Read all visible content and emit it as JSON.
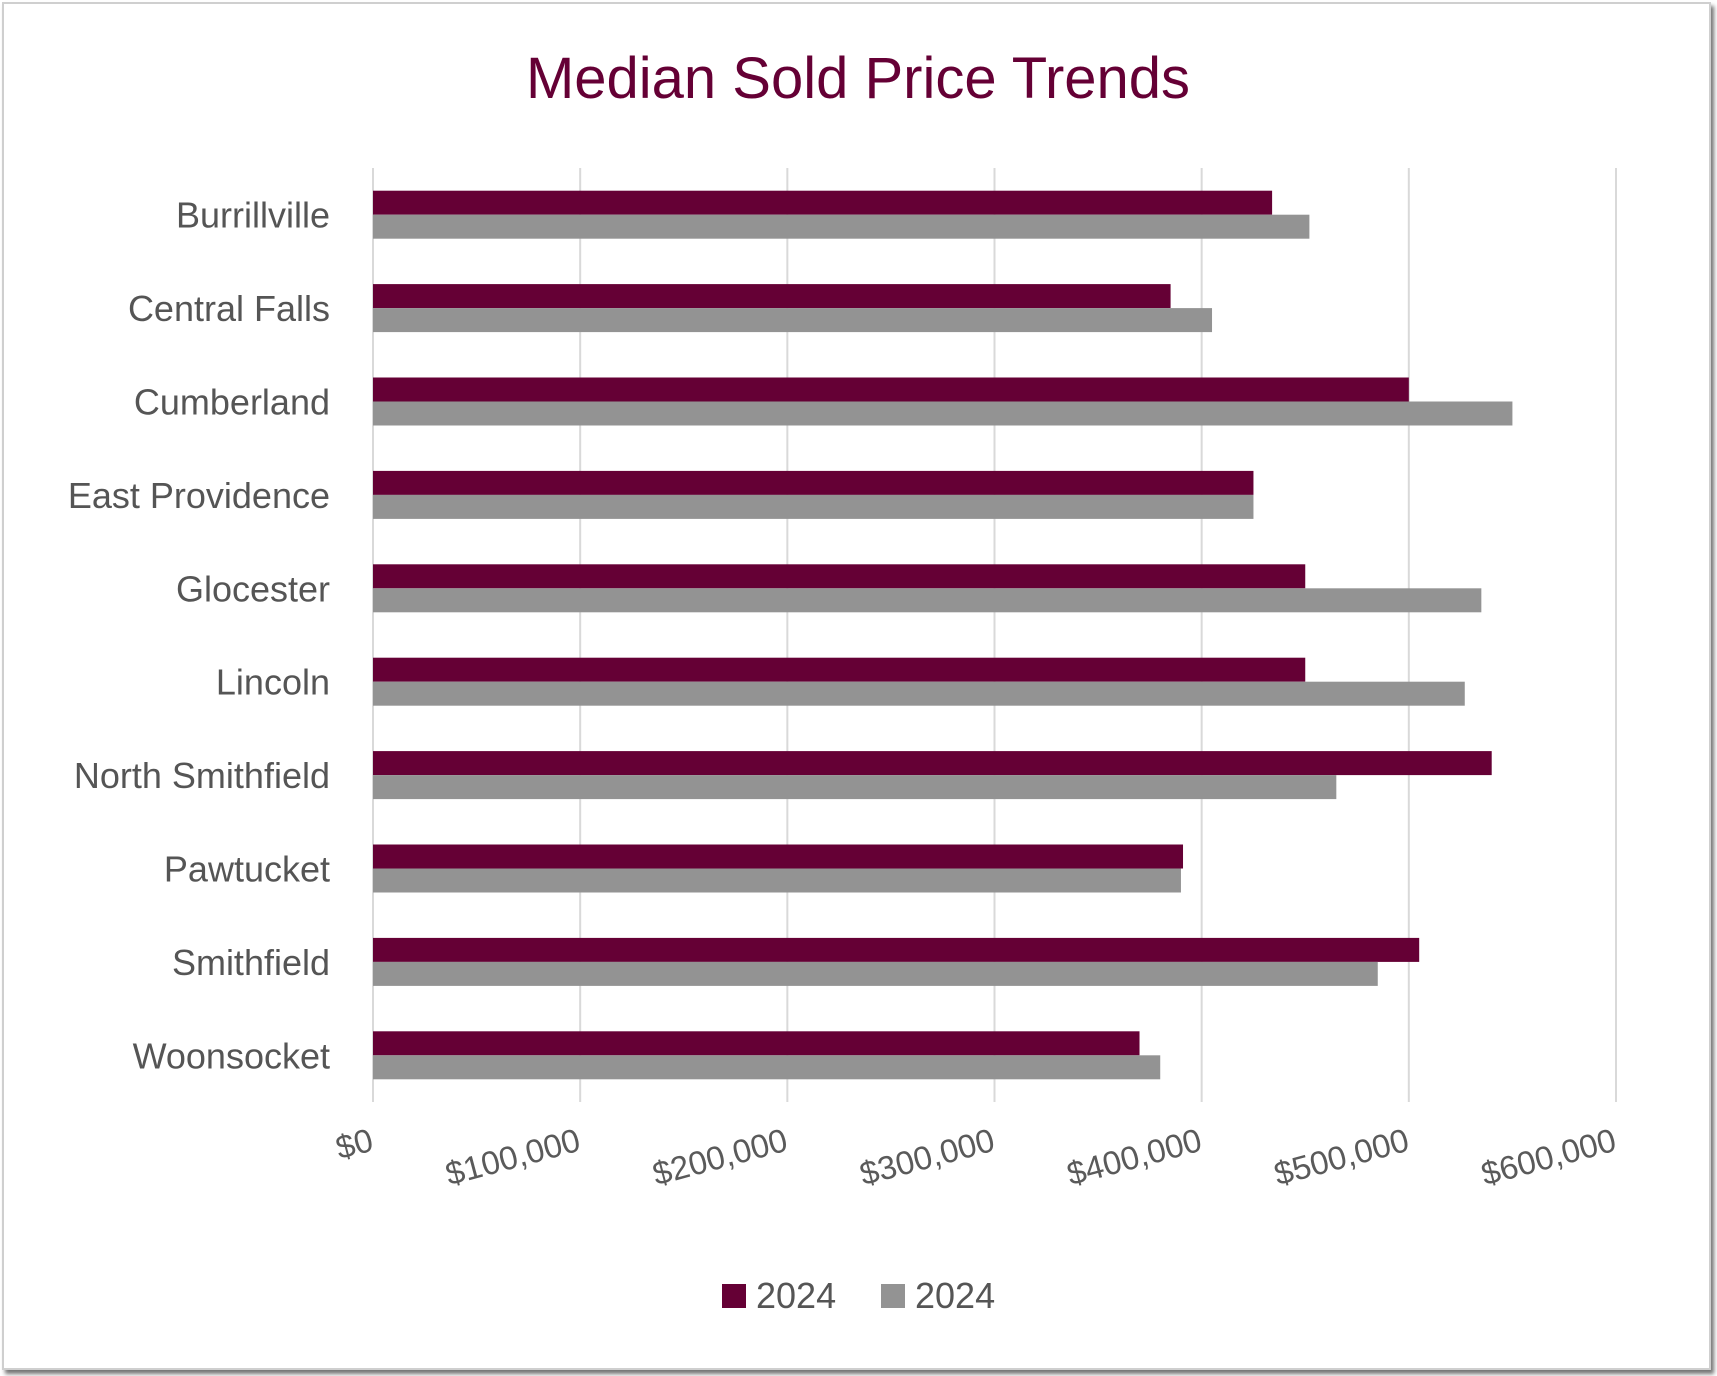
{
  "chart_data": {
    "type": "bar",
    "orientation": "horizontal",
    "title": "Median Sold Price Trends",
    "xlabel": "",
    "ylabel": "",
    "categories": [
      "Burrillville",
      "Central Falls",
      "Cumberland",
      "East Providence",
      "Glocester",
      "Lincoln",
      "North Smithfield",
      "Pawtucket",
      "Smithfield",
      "Woonsocket"
    ],
    "series": [
      {
        "name": "2024",
        "color": "#650035",
        "values": [
          434000,
          385000,
          500000,
          425000,
          450000,
          450000,
          540000,
          391000,
          505000,
          370000
        ]
      },
      {
        "name": "2024",
        "color": "#939393",
        "values": [
          452000,
          405000,
          550000,
          425000,
          535000,
          527000,
          465000,
          390000,
          485000,
          380000
        ]
      }
    ],
    "xlim": [
      0,
      600000
    ],
    "xticks": [
      0,
      100000,
      200000,
      300000,
      400000,
      500000,
      600000
    ],
    "xtick_labels": [
      "$0",
      "$100,000",
      "$200,000",
      "$300,000",
      "$400,000",
      "$500,000",
      "$600,000"
    ],
    "grid": true,
    "legend_position": "bottom"
  }
}
